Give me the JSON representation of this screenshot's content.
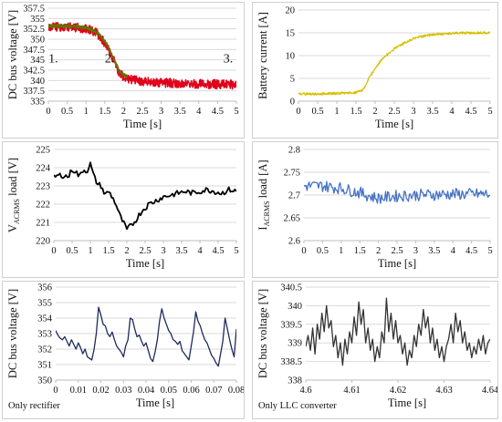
{
  "chart_data": [
    {
      "type": "line",
      "xlabel": "Time [s]",
      "ylabel": "DC bus voltage [V]",
      "xlim": [
        0,
        5
      ],
      "ylim": [
        335,
        357.5
      ],
      "xticks": [
        "0",
        "0.5",
        "1",
        "1.5",
        "2",
        "2.5",
        "3",
        "3.5",
        "4",
        "4.5",
        "5"
      ],
      "yticks": [
        "335",
        "337.5",
        "340",
        "342.5",
        "345",
        "347.5",
        "350",
        "352.5",
        "355",
        "357.5"
      ],
      "annotations": [
        "1.",
        "2.",
        "3."
      ],
      "series": [
        {
          "color": "#e0001b",
          "x": [
            0,
            0.5,
            1.0,
            1.3,
            1.55,
            1.75,
            1.9,
            2.1,
            2.4,
            2.8,
            3.2,
            3.6,
            4.0,
            4.5,
            5.0
          ],
          "y": [
            353,
            353,
            352.6,
            351.4,
            348.5,
            344.5,
            341.5,
            340.4,
            339.9,
            339.6,
            339.4,
            339.3,
            339.2,
            339.1,
            339.0
          ],
          "band": 2.2
        },
        {
          "color": "#6b6b00",
          "x": [
            0,
            0.5,
            1.0,
            1.3,
            1.55,
            1.75,
            1.9,
            2.1
          ],
          "y": [
            353.2,
            353.2,
            352.8,
            351.6,
            348.8,
            344.9,
            342.0,
            340.8
          ],
          "band": 0.9
        }
      ]
    },
    {
      "type": "line",
      "xlabel": "Time [s]",
      "ylabel": "Battery current [A]",
      "xlim": [
        0,
        5
      ],
      "ylim": [
        0,
        20
      ],
      "xticks": [
        "0",
        "0.5",
        "1",
        "1.5",
        "2",
        "2.5",
        "3",
        "3.5",
        "4",
        "4.5",
        "5"
      ],
      "yticks": [
        "0",
        "5",
        "10",
        "15",
        "20"
      ],
      "series": [
        {
          "color": "#d8c000",
          "x": [
            0,
            0.5,
            1.0,
            1.5,
            1.65,
            1.75,
            1.85,
            2.0,
            2.2,
            2.5,
            2.8,
            3.1,
            3.5,
            4.0,
            4.5,
            5.0
          ],
          "y": [
            1.6,
            1.6,
            1.7,
            1.9,
            2.3,
            3.5,
            5.3,
            7.3,
            9.4,
            11.5,
            13.0,
            14.0,
            14.6,
            14.9,
            15.0,
            15.0
          ],
          "band": 0.5
        }
      ]
    },
    {
      "type": "line",
      "xlabel": "Time [s]",
      "ylabel": "VACRMS load [V]",
      "xlim": [
        0,
        5
      ],
      "ylim": [
        220,
        225
      ],
      "xticks": [
        "0",
        "0.5",
        "1",
        "1.5",
        "2",
        "2.5",
        "3",
        "3.5",
        "4",
        "4.5",
        "5"
      ],
      "yticks": [
        "220",
        "221",
        "222",
        "223",
        "224",
        "225"
      ],
      "series": [
        {
          "color": "#000000",
          "x": [
            0,
            0.2,
            0.4,
            0.5,
            0.6,
            0.7,
            0.8,
            0.9,
            1.0,
            1.1,
            1.2,
            1.3,
            1.4,
            1.5,
            1.6,
            1.7,
            1.8,
            1.9,
            2.0,
            2.1,
            2.2,
            2.3,
            2.4,
            2.6,
            2.8,
            3.0,
            3.2,
            3.4,
            3.6,
            3.8,
            4.0,
            4.2,
            4.4,
            4.6,
            4.8,
            5.0
          ],
          "y": [
            223.5,
            223.6,
            223.5,
            223.9,
            223.8,
            223.5,
            223.9,
            223.8,
            224.2,
            223.5,
            223.1,
            223.0,
            222.5,
            222.7,
            222.4,
            222.0,
            221.4,
            221.0,
            220.6,
            220.8,
            221.0,
            221.3,
            221.6,
            222.0,
            222.2,
            222.4,
            222.5,
            222.6,
            222.7,
            222.6,
            222.7,
            222.8,
            222.7,
            222.6,
            222.8,
            222.7
          ],
          "noise": 0.15
        }
      ]
    },
    {
      "type": "line",
      "xlabel": "Time [s]",
      "ylabel": "IACRMS load [A]",
      "xlim": [
        0,
        5
      ],
      "ylim": [
        2.6,
        2.8
      ],
      "xticks": [
        "0",
        "0.5",
        "1",
        "1.5",
        "2",
        "2.5",
        "3",
        "3.5",
        "4",
        "4.5",
        "5"
      ],
      "yticks": [
        "2.6",
        "2.65",
        "2.7",
        "2.75",
        "2.8"
      ],
      "series": [
        {
          "color": "#4472c4",
          "x": [
            0,
            0.5,
            1.0,
            1.5,
            1.8,
            2.0,
            2.2,
            2.5,
            3.0,
            3.5,
            4.0,
            4.5,
            5.0
          ],
          "y": [
            2.72,
            2.72,
            2.715,
            2.705,
            2.697,
            2.693,
            2.695,
            2.698,
            2.7,
            2.701,
            2.702,
            2.702,
            2.702
          ],
          "noise": 0.013
        }
      ]
    },
    {
      "type": "line",
      "xlabel": "Time [s]",
      "ylabel": "DC bus voltage [V]",
      "xlim": [
        0,
        0.08
      ],
      "ylim": [
        350,
        356
      ],
      "xticks": [
        "0",
        "0.01",
        "0.02",
        "0.03",
        "0.04",
        "0.05",
        "0.06",
        "0.07",
        "0.08"
      ],
      "yticks": [
        "350",
        "351",
        "352",
        "353",
        "354",
        "355",
        "356"
      ],
      "note": "Only rectifier",
      "series": [
        {
          "color": "#1f2a5c",
          "y": [
            353.2,
            352.9,
            352.7,
            352.6,
            352.8,
            352.5,
            352.2,
            352.6,
            352.3,
            352.0,
            352.4,
            352.1,
            351.7,
            352.0,
            351.5,
            351.4,
            351.3,
            352.0,
            353.0,
            354.7,
            354.2,
            353.6,
            353.5,
            353.0,
            352.8,
            353.1,
            352.6,
            352.2,
            352.0,
            351.8,
            351.5,
            352.2,
            352.6,
            354.0,
            353.9,
            353.3,
            352.8,
            352.9,
            352.5,
            352.2,
            352.4,
            351.9,
            351.4,
            351.2,
            351.8,
            352.6,
            353.8,
            354.6,
            354.0,
            353.6,
            353.2,
            353.0,
            352.6,
            352.5,
            352.3,
            352.5,
            351.9,
            351.7,
            351.5,
            351.3,
            352.2,
            353.1,
            354.4,
            353.8,
            353.5,
            353.0,
            352.6,
            352.4,
            352.0,
            351.6,
            351.4,
            351.1,
            350.9,
            351.7,
            352.5,
            354.0,
            353.3,
            352.6,
            352.0,
            351.5,
            353.3
          ]
        }
      ]
    },
    {
      "type": "line",
      "xlabel": "Time [s]",
      "ylabel": "DC bus voltage [V]",
      "xlim": [
        4.6,
        4.64
      ],
      "ylim": [
        338,
        340.5
      ],
      "xticks": [
        "4.6",
        "4.61",
        "4.62",
        "4.63",
        "4.64"
      ],
      "yticks": [
        "338",
        "338.5",
        "339",
        "339.5",
        "340",
        "340.5"
      ],
      "note": "Only LLC converter",
      "series": [
        {
          "color": "#333333",
          "y": [
            338.9,
            339.2,
            338.8,
            339.4,
            338.7,
            339.5,
            339.1,
            339.8,
            339.3,
            340.0,
            339.4,
            339.6,
            338.9,
            339.2,
            338.6,
            339.0,
            338.4,
            339.1,
            338.7,
            339.3,
            339.0,
            339.7,
            339.2,
            340.1,
            339.5,
            339.9,
            339.0,
            339.4,
            338.8,
            339.1,
            338.5,
            338.9,
            338.6,
            339.3,
            339.0,
            340.2,
            339.3,
            339.8,
            339.1,
            339.6,
            339.0,
            339.2,
            338.7,
            339.0,
            338.4,
            338.8,
            338.6,
            339.2,
            338.9,
            339.5,
            339.2,
            339.9,
            339.4,
            339.7,
            339.0,
            339.4,
            338.8,
            339.1,
            338.6,
            338.9,
            338.5,
            338.9,
            339.1,
            339.5,
            339.0,
            339.8,
            339.3,
            339.6,
            339.0,
            339.3,
            338.8,
            339.0,
            338.6,
            338.9,
            338.7,
            339.1,
            338.8,
            339.2,
            338.7,
            339.0,
            339.1
          ]
        }
      ]
    }
  ]
}
